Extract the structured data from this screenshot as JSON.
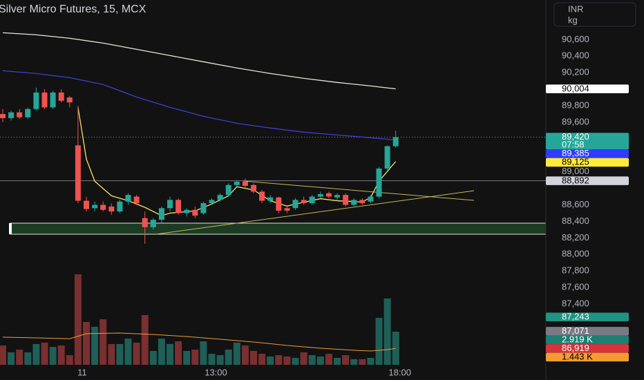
{
  "chart_data": {
    "type": "candlestick",
    "title": "Silver Micro Futures, 15, MCX",
    "currency": "INR",
    "unit": "kg",
    "categories": [
      null,
      null,
      null,
      null,
      null,
      null,
      null,
      null,
      null,
      "11",
      null,
      null,
      null,
      null,
      null,
      null,
      null,
      null,
      null,
      null,
      null,
      null,
      null,
      null,
      null,
      "13:00",
      null,
      null,
      null,
      null,
      null,
      null,
      null,
      null,
      null,
      null,
      null,
      null,
      null,
      null,
      null,
      null,
      null,
      null,
      null,
      null,
      null,
      "18:00"
    ],
    "open": [
      89700,
      89650,
      89720,
      89660,
      89760,
      89960,
      89780,
      89960,
      89900,
      89320,
      88650,
      88560,
      88600,
      88580,
      88520,
      88640,
      88700,
      88440,
      88330,
      88420,
      88560,
      88660,
      88500,
      88540,
      88500,
      88620,
      88660,
      88720,
      88840,
      88880,
      88840,
      88760,
      88650,
      88690,
      88560,
      88560,
      88660,
      88620,
      88700,
      88740,
      88690,
      88720,
      88600,
      88660,
      88640,
      88700,
      89040,
      89310
    ],
    "high": [
      89760,
      89740,
      89760,
      89780,
      90020,
      90000,
      89980,
      90000,
      89920,
      89800,
      88700,
      88640,
      88640,
      88620,
      88660,
      88740,
      88720,
      88520,
      88440,
      88580,
      88700,
      88680,
      88560,
      88580,
      88640,
      88680,
      88740,
      88860,
      88900,
      88920,
      88860,
      88780,
      88720,
      88700,
      88600,
      88680,
      88700,
      88720,
      88760,
      88760,
      88740,
      88740,
      88680,
      88680,
      88720,
      89060,
      89320,
      89500
    ],
    "low": [
      89600,
      89620,
      89640,
      89640,
      89740,
      89760,
      89760,
      89840,
      89780,
      88620,
      88520,
      88520,
      88520,
      88480,
      88500,
      88600,
      88600,
      88130,
      88300,
      88380,
      88520,
      88480,
      88460,
      88440,
      88480,
      88600,
      88640,
      88700,
      88820,
      88800,
      88740,
      88620,
      88620,
      88500,
      88500,
      88540,
      88600,
      88600,
      88680,
      88680,
      88660,
      88580,
      88580,
      88600,
      88620,
      88680,
      89020,
      89290
    ],
    "close": [
      89650,
      89720,
      89660,
      89760,
      89960,
      89780,
      89960,
      89860,
      89840,
      88650,
      88550,
      88600,
      88540,
      88520,
      88640,
      88720,
      88620,
      88330,
      88420,
      88560,
      88660,
      88500,
      88540,
      88470,
      88620,
      88660,
      88720,
      88840,
      88880,
      88830,
      88760,
      88650,
      88690,
      88530,
      88530,
      88660,
      88620,
      88700,
      88730,
      88700,
      88720,
      88600,
      88660,
      88620,
      88700,
      89040,
      89310,
      89420
    ],
    "up_color": "#26a69a",
    "down_color": "#ef5350",
    "ylim": [
      86480,
      91080
    ],
    "yticks": [
      {
        "value": 90600,
        "label": "90,600"
      },
      {
        "value": 90400,
        "label": "90,400"
      },
      {
        "value": 90200,
        "label": "90,200"
      },
      {
        "value": 89800,
        "label": "89,800"
      },
      {
        "value": 89600,
        "label": "89,600"
      },
      {
        "value": 89000,
        "label": "89,000"
      },
      {
        "value": 88600,
        "label": "88,600"
      },
      {
        "value": 88400,
        "label": "88,400"
      },
      {
        "value": 88200,
        "label": "88,200"
      },
      {
        "value": 88000,
        "label": "88,000"
      },
      {
        "value": 87800,
        "label": "87,800"
      },
      {
        "value": 87600,
        "label": "87,600"
      },
      {
        "value": 87400,
        "label": "87,400"
      }
    ],
    "lines": [
      {
        "color": "#e8e6d9",
        "x": [
          0,
          4,
          8,
          12,
          16,
          20,
          24,
          28,
          32,
          36,
          40,
          44,
          47
        ],
        "values": [
          90684,
          90659,
          90617,
          90558,
          90483,
          90408,
          90332,
          90257,
          90190,
          90132,
          90082,
          90040,
          90004
        ]
      },
      {
        "color": "#3f3fd8",
        "x": [
          0,
          4,
          8,
          12,
          16,
          20,
          24,
          28,
          32,
          36,
          40,
          44,
          47
        ],
        "values": [
          90224,
          90190,
          90140,
          90057,
          89906,
          89781,
          89672,
          89588,
          89530,
          89480,
          89446,
          89413,
          89385
        ]
      },
      {
        "color": "#f5e663",
        "x": [
          9,
          10,
          11,
          13,
          15,
          17,
          19,
          20,
          23,
          25,
          27,
          28,
          30,
          32,
          34,
          35,
          38,
          40,
          43,
          44,
          45,
          47
        ],
        "values": [
          89780,
          89155,
          88886,
          88710,
          88650,
          88570,
          88470,
          88500,
          88527,
          88610,
          88710,
          88820,
          88780,
          88650,
          88585,
          88610,
          88675,
          88650,
          88635,
          88690,
          88886,
          89125
        ]
      }
    ],
    "level": {
      "value": 88892,
      "color": "#d1d4dc"
    },
    "volume": {
      "values": [
        1700,
        1100,
        1340,
        1100,
        1830,
        1950,
        1580,
        1700,
        850,
        7970,
        3770,
        3350,
        4010,
        1830,
        1830,
        2310,
        1950,
        4380,
        1220,
        2310,
        1830,
        2070,
        1220,
        1340,
        2070,
        970,
        850,
        1340,
        1950,
        1700,
        1220,
        970,
        730,
        850,
        730,
        610,
        1100,
        850,
        730,
        970,
        610,
        850,
        490,
        490,
        610,
        4140,
        5840,
        2919
      ],
      "up_color": "#1f5f57",
      "down_color": "#7a2f30",
      "vlim": [
        0,
        8000
      ],
      "ma": {
        "color": "#f39c32",
        "x": [
          0,
          4,
          8,
          10,
          14,
          18,
          22,
          26,
          30,
          34,
          38,
          42,
          44,
          46,
          47
        ],
        "values": [
          2430,
          2370,
          2300,
          2740,
          2800,
          2670,
          2490,
          2250,
          2010,
          1700,
          1460,
          1280,
          1220,
          1340,
          1443
        ]
      }
    },
    "price_tags": [
      {
        "value": 90004,
        "label": "90,004",
        "color": "#ffffff",
        "text_color": "#000000"
      },
      {
        "value": 89420,
        "label": "89,420",
        "countdown": "07:58",
        "color": "#26a69a",
        "text_color": "#ffffff"
      },
      {
        "value": 89385,
        "label": "89,385",
        "color": "#2f3cff",
        "text_color": "#ffffff"
      },
      {
        "value": 89125,
        "label": "89,125",
        "color": "#ffeb3b",
        "text_color": "#000000"
      },
      {
        "value": 88892,
        "label": "88,892",
        "color": "#d1d4dc",
        "text_color": "#000000"
      },
      {
        "value": 87243,
        "label": "87,243",
        "color": "#1f9484",
        "text_color": "#ffffff"
      },
      {
        "value": 87071,
        "label": "87,071",
        "color": "#787b86",
        "text_color": "#ffffff"
      },
      {
        "value": 86919,
        "label": "86,919",
        "color": "#d6343a",
        "text_color": "#ffffff"
      }
    ],
    "volume_tags": [
      {
        "value": 2919,
        "label": "2.919 K",
        "color": "#1b7f73",
        "text_color": "#ffffff"
      },
      {
        "value": 1443,
        "label": "1.443 K",
        "color": "#f39c32",
        "text_color": "#000000"
      }
    ]
  }
}
